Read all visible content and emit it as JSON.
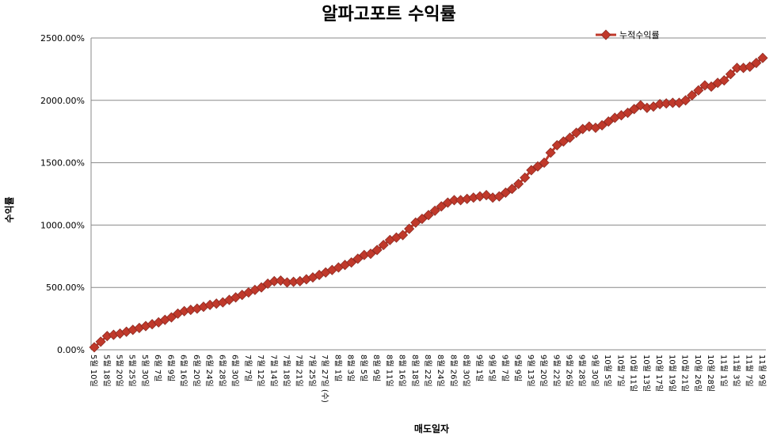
{
  "chart_data": {
    "type": "line",
    "title": "알파고포트 수익률",
    "y_label": "수익률",
    "x_label": "매도일자",
    "legend": "top-right",
    "grid": true,
    "categories": [
      "5월 10일",
      null,
      "5월 18일",
      null,
      "5월 20일",
      null,
      "5월 25일",
      null,
      "5월 30일",
      null,
      "6월 7일",
      null,
      "6월 9일",
      null,
      "6월 16일",
      null,
      "6월 20일",
      null,
      "6월 24일",
      null,
      "6월 28일",
      null,
      "6월 30일",
      null,
      "7월 7일",
      null,
      "7월 12일",
      null,
      "7월 14일",
      null,
      "7월 18일",
      null,
      "7월 21일",
      null,
      "7월 25일",
      null,
      "7월 27일 (수)",
      null,
      "8월 1일",
      null,
      "8월 3일",
      null,
      "8월 5일",
      null,
      "8월 9일",
      null,
      "8월 11일",
      null,
      "8월 16일",
      null,
      "8월 18일",
      null,
      "8월 22일",
      null,
      "8월 24일",
      null,
      "8월 26일",
      null,
      "8월 30일",
      null,
      "9월 1일",
      null,
      "9월 5일",
      null,
      "9월 7일",
      null,
      "9월 9일",
      null,
      "9월 13일",
      null,
      "9월 20일",
      null,
      "9월 22일",
      null,
      "9월 26일",
      null,
      "9월 28일",
      null,
      "9월 30일",
      null,
      "10월 5일",
      null,
      "10월 7일",
      null,
      "10월 11일",
      null,
      "10월 13일",
      null,
      "10월 17일",
      null,
      "10월 19일",
      null,
      "10월 21일",
      null,
      "10월 26일",
      null,
      "10월 28일",
      null,
      "11월 1일",
      null,
      "11월 3일",
      null,
      "11월 7일",
      null,
      "11월 9일"
    ],
    "series": [
      {
        "name": "누적수익률",
        "color": "#c0392b",
        "values": [
          20,
          65,
          110,
          120,
          130,
          145,
          160,
          175,
          190,
          205,
          220,
          240,
          260,
          290,
          310,
          320,
          330,
          345,
          360,
          370,
          380,
          400,
          420,
          440,
          460,
          480,
          500,
          530,
          550,
          555,
          540,
          545,
          550,
          565,
          580,
          600,
          620,
          640,
          660,
          680,
          700,
          730,
          760,
          770,
          800,
          840,
          880,
          900,
          920,
          970,
          1020,
          1050,
          1080,
          1115,
          1150,
          1180,
          1200,
          1200,
          1210,
          1220,
          1230,
          1240,
          1220,
          1230,
          1260,
          1290,
          1330,
          1380,
          1440,
          1470,
          1500,
          1580,
          1640,
          1670,
          1700,
          1740,
          1770,
          1790,
          1780,
          1800,
          1830,
          1860,
          1880,
          1900,
          1930,
          1960,
          1940,
          1950,
          1970,
          1975,
          1980,
          1980,
          2000,
          2040,
          2080,
          2120,
          2110,
          2140,
          2160,
          2210,
          2260,
          2260,
          2270,
          2300,
          2340
        ]
      }
    ],
    "ylim": [
      0,
      2500
    ],
    "yticks": [
      {
        "value": 0,
        "label": "0.00%"
      },
      {
        "value": 500,
        "label": "500.00%"
      },
      {
        "value": 1000,
        "label": "1000.00%"
      },
      {
        "value": 1500,
        "label": "1500.00%"
      },
      {
        "value": 2000,
        "label": "2000.00%"
      },
      {
        "value": 2500,
        "label": "2500.00%"
      }
    ]
  }
}
